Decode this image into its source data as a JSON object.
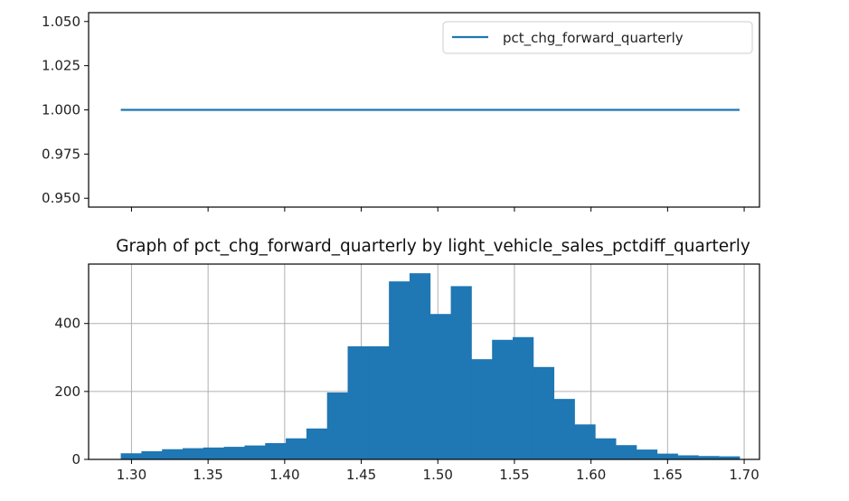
{
  "chart_data": [
    {
      "type": "line",
      "title": "",
      "xlabel": "",
      "ylabel": "",
      "legend": {
        "placement": "upper right",
        "entries": [
          "pct_chg_forward_quarterly"
        ]
      },
      "series": [
        {
          "name": "pct_chg_forward_quarterly",
          "color": "#1f77b4",
          "x": [
            1.293,
            1.697
          ],
          "y": [
            1.0,
            1.0
          ]
        }
      ],
      "xlim": [
        1.272,
        1.71
      ],
      "ylim": [
        0.945,
        1.055
      ],
      "yticks": [
        "0.950",
        "0.975",
        "1.000",
        "1.025",
        "1.050"
      ],
      "shares_x_with_next": true,
      "grid": false
    },
    {
      "type": "histogram",
      "title": "Graph of pct_chg_forward_quarterly by light_vehicle_sales_pctdiff_quarterly",
      "xlabel": "",
      "ylabel": "",
      "color": "#1f77b4",
      "bin_range": [
        1.293,
        1.697
      ],
      "bin_count": 30,
      "counts": [
        18,
        24,
        30,
        33,
        35,
        37,
        41,
        48,
        62,
        91,
        197,
        333,
        333,
        524,
        548,
        428,
        510,
        295,
        352,
        360,
        272,
        178,
        103,
        62,
        42,
        29,
        17,
        12,
        10,
        9
      ],
      "xlim": [
        1.272,
        1.71
      ],
      "ylim": [
        0,
        575
      ],
      "xticks": [
        "1.30",
        "1.35",
        "1.40",
        "1.45",
        "1.50",
        "1.55",
        "1.60",
        "1.65",
        "1.70"
      ],
      "yticks": [
        "0",
        "200",
        "400"
      ],
      "grid": true
    }
  ]
}
